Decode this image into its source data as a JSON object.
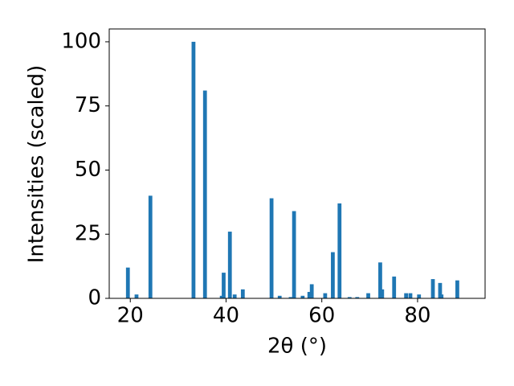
{
  "chart_data": {
    "type": "bar",
    "x": [
      19.5,
      21.3,
      24.2,
      33.2,
      35.6,
      39.1,
      39.5,
      40.8,
      41.8,
      43.5,
      49.5,
      51.2,
      53.5,
      54.2,
      56.0,
      57.4,
      57.9,
      60.7,
      62.3,
      63.7,
      65.8,
      67.4,
      69.7,
      72.2,
      72.6,
      75.1,
      77.6,
      78.5,
      80.3,
      83.2,
      84.7,
      85.0,
      88.3
    ],
    "values": [
      12,
      1.5,
      40,
      100,
      81,
      1,
      10,
      26,
      1.5,
      3.5,
      39,
      1,
      0.5,
      34,
      1,
      2.5,
      5.5,
      2,
      18,
      37,
      0.5,
      0.5,
      2,
      14,
      3.5,
      8.5,
      2,
      2,
      1.5,
      7.5,
      6,
      1.5,
      7
    ],
    "color": "#1f77b4",
    "xlabel": "2θ (°)",
    "ylabel": "Intensities (scaled)",
    "xlim": [
      15.6,
      94.1
    ],
    "xticks": [
      20,
      40,
      60,
      80
    ],
    "ylim": [
      0,
      105
    ],
    "yticks": [
      0,
      25,
      50,
      75,
      100
    ]
  }
}
